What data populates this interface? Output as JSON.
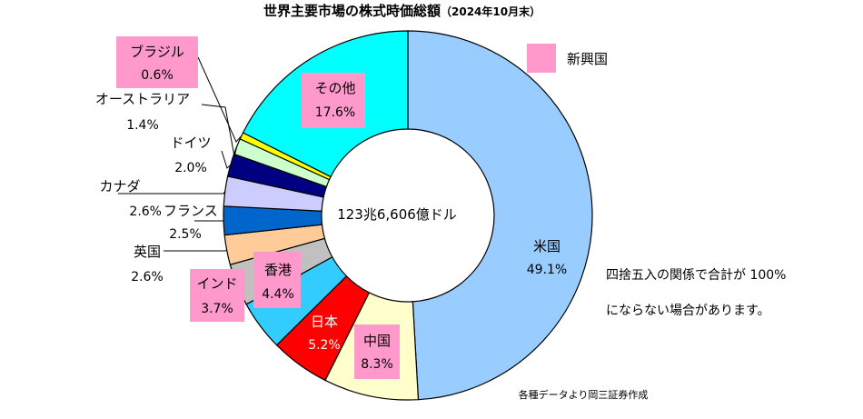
{
  "chart_data": {
    "type": "donut",
    "title": "世界主要市場の株式時価総額",
    "title_note": "（2024年10月末）",
    "center_label": "123兆6,606億ドル",
    "legend": {
      "label": "新興国",
      "color": "#ff99cc"
    },
    "note_lines": [
      "四捨五入の関係で合計が 100%",
      "にならない場合があります。"
    ],
    "source": "各種データより岡三証券作成",
    "emerging_highlight_color": "#ff99cc",
    "slices": [
      {
        "name": "米国",
        "value": 49.1,
        "display": "49.1%",
        "color": "#99ccff",
        "emerging": false
      },
      {
        "name": "中国",
        "value": 8.3,
        "display": "8.3%",
        "color": "#ffffcc",
        "emerging": true
      },
      {
        "name": "日本",
        "value": 5.2,
        "display": "5.2%",
        "color": "#ff0000",
        "emerging": false
      },
      {
        "name": "香港",
        "value": 4.4,
        "display": "4.4%",
        "color": "#33ccff",
        "emerging": true
      },
      {
        "name": "インド",
        "value": 3.7,
        "display": "3.7%",
        "color": "#c0c0c0",
        "emerging": true
      },
      {
        "name": "英国",
        "value": 2.6,
        "display": "2.6%",
        "color": "#ffcc99",
        "emerging": false
      },
      {
        "name": "フランス",
        "value": 2.5,
        "display": "2.5%",
        "color": "#0066cc",
        "emerging": false
      },
      {
        "name": "カナダ",
        "value": 2.6,
        "display": "2.6%",
        "color": "#ccccff",
        "emerging": false
      },
      {
        "name": "ドイツ",
        "value": 2.0,
        "display": "2.0%",
        "color": "#000080",
        "emerging": false
      },
      {
        "name": "オーストラリア",
        "value": 1.4,
        "display": "1.4%",
        "color": "#ccffcc",
        "emerging": false
      },
      {
        "name": "ブラジル",
        "value": 0.6,
        "display": "0.6%",
        "color": "#ffff00",
        "emerging": true
      },
      {
        "name": "その他",
        "value": 17.6,
        "display": "17.6%",
        "color": "#00ffff",
        "emerging": false
      }
    ]
  }
}
